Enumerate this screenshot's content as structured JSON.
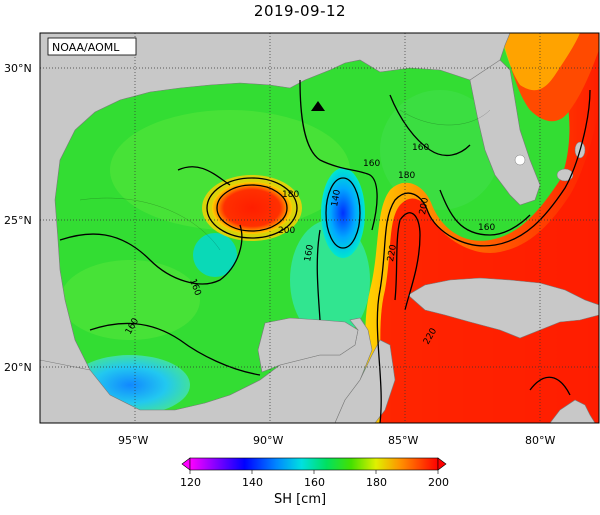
{
  "title": "2019-09-12",
  "watermark": "NOAA/AOML",
  "lat_labels": [
    "30°N",
    "25°N",
    "20°N"
  ],
  "lon_labels": [
    "95°W",
    "90°W",
    "85°W",
    "80°W"
  ],
  "contour_labels": [
    "180",
    "200",
    "140",
    "160",
    "160",
    "180",
    "200",
    "220",
    "160",
    "160",
    "160",
    "160",
    "220"
  ],
  "colorbar": {
    "label": "SH [cm]",
    "ticks": [
      "120",
      "140",
      "160",
      "180",
      "200"
    ],
    "range": [
      120,
      200
    ]
  },
  "colors": {
    "land": "#c8c8c8",
    "green": "#33dd33",
    "red": "#ff1e00",
    "yellow": "#f0f000",
    "cyan": "#00ddee",
    "blue": "#0033ff"
  },
  "marker": "triangle-buoy"
}
